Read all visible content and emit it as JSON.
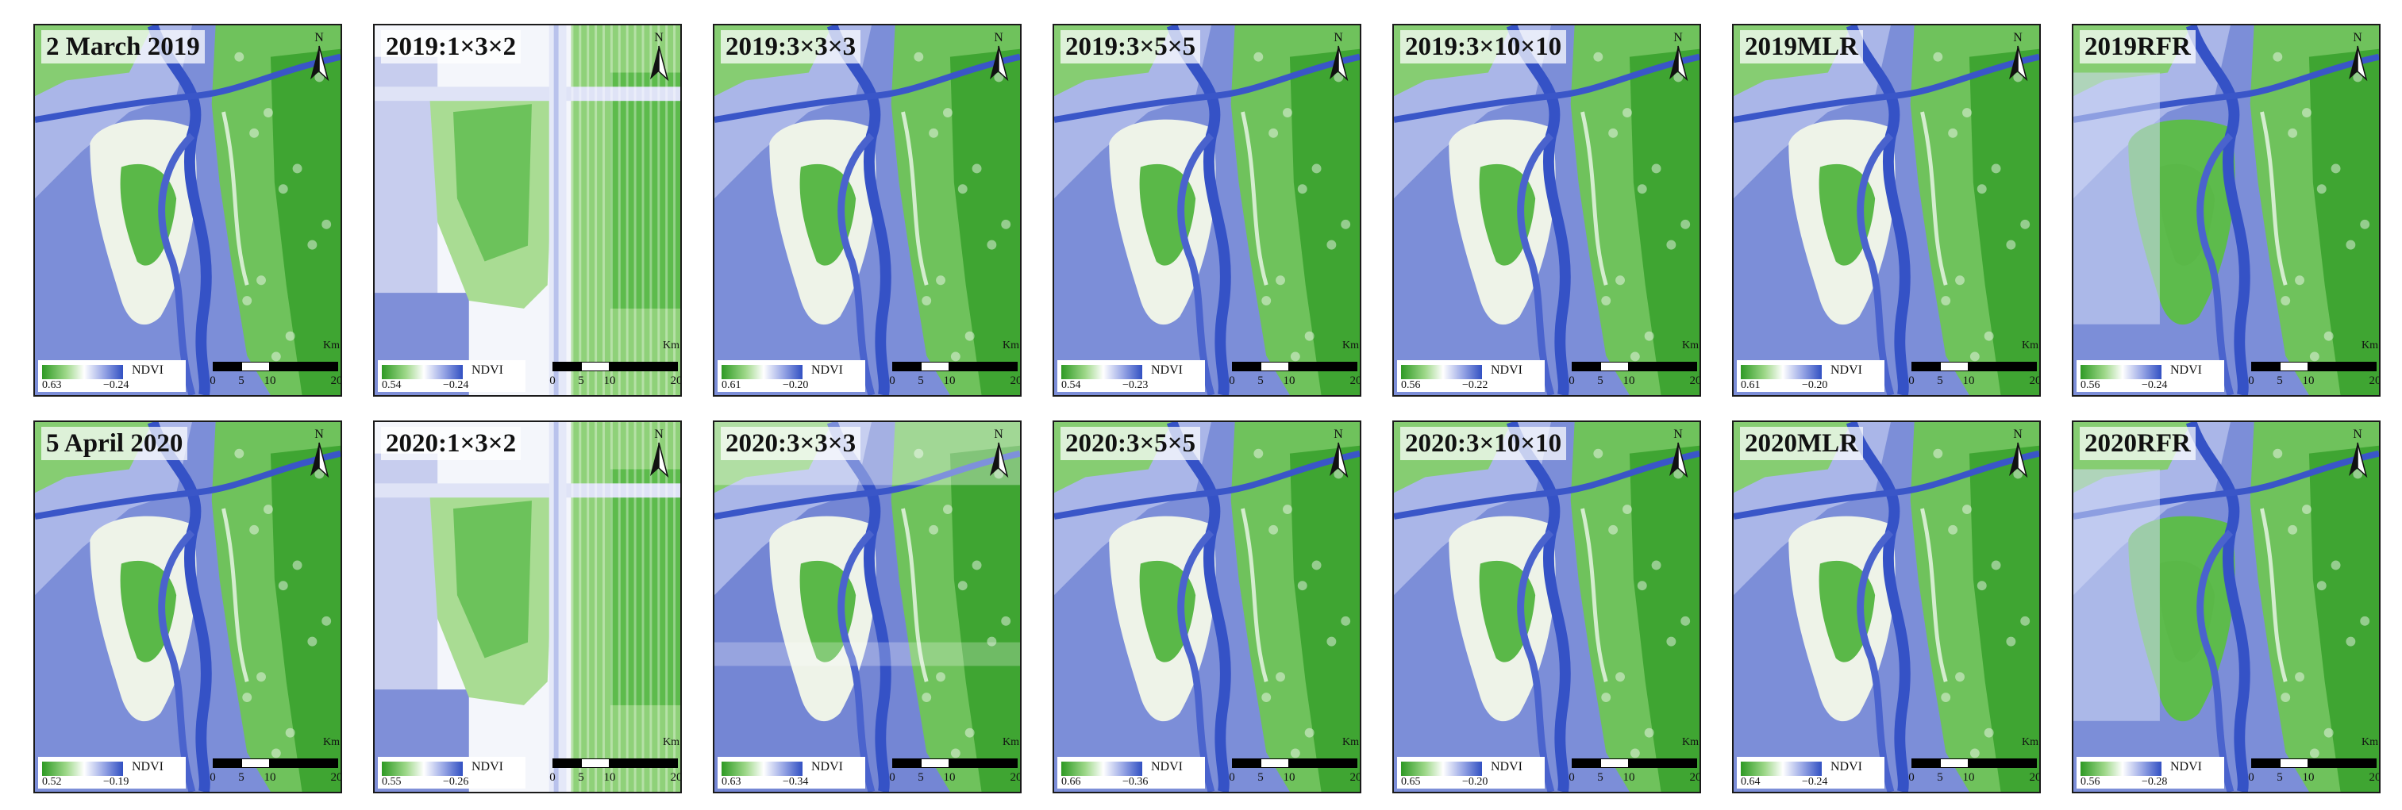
{
  "colors": {
    "green": "#2e9a24",
    "blue": "#3150c2",
    "white": "#ffffff"
  },
  "legend_title": "NDVI",
  "scale": {
    "ticks": [
      "0",
      "5",
      "10",
      "20"
    ],
    "unit": "Km"
  },
  "north_label": "N",
  "rows": [
    {
      "panels": [
        {
          "title": "2 March 2019",
          "max": "0.63",
          "min": "−0.24",
          "style": "landsat"
        },
        {
          "title": "2019:1×3×2",
          "max": "0.54",
          "min": "−0.24",
          "style": "blocky"
        },
        {
          "title": "2019:3×3×3",
          "max": "0.61",
          "min": "−0.20",
          "style": "landsat"
        },
        {
          "title": "2019:3×5×5",
          "max": "0.54",
          "min": "−0.23",
          "style": "landsat"
        },
        {
          "title": "2019:3×10×10",
          "max": "0.56",
          "min": "−0.22",
          "style": "landsat"
        },
        {
          "title": "2019MLR",
          "max": "0.61",
          "min": "−0.20",
          "style": "landsat"
        },
        {
          "title": "2019RFR",
          "max": "0.56",
          "min": "−0.24",
          "style": "rfr"
        }
      ]
    },
    {
      "panels": [
        {
          "title": "5 April 2020",
          "max": "0.52",
          "min": "−0.19",
          "style": "landsat"
        },
        {
          "title": "2020:1×3×2",
          "max": "0.55",
          "min": "−0.26",
          "style": "blocky"
        },
        {
          "title": "2020:3×3×3",
          "max": "0.63",
          "min": "−0.34",
          "style": "noisy"
        },
        {
          "title": "2020:3×5×5",
          "max": "0.66",
          "min": "−0.36",
          "style": "landsat"
        },
        {
          "title": "2020:3×10×10",
          "max": "0.65",
          "min": "−0.20",
          "style": "landsat"
        },
        {
          "title": "2020MLR",
          "max": "0.64",
          "min": "−0.24",
          "style": "landsat"
        },
        {
          "title": "2020RFR",
          "max": "0.56",
          "min": "−0.28",
          "style": "rfr"
        }
      ]
    }
  ]
}
